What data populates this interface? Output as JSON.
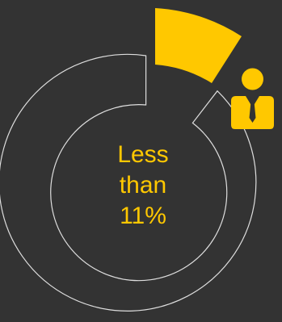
{
  "center_label": {
    "line1": "Less",
    "line2": "than",
    "line3": "11%"
  },
  "highlight_share_percent": 11,
  "colors": {
    "background": "#333333",
    "accent": "#ffc800",
    "outline": "#dedede"
  },
  "icon": "businessman-icon"
}
